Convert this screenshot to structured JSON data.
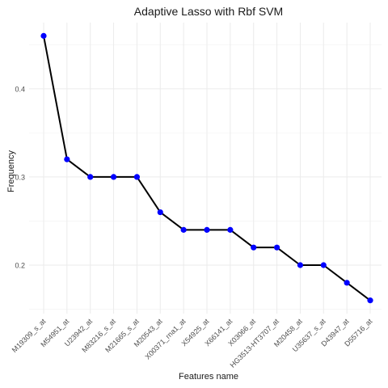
{
  "chart_data": {
    "type": "line",
    "title": "Adaptive Lasso with Rbf SVM",
    "xlabel": "Features name",
    "ylabel": "Frequency",
    "categories": [
      "M19309_s_at",
      "M54951_at",
      "U23942_at",
      "M83216_s_at",
      "M21665_s_at",
      "M20543_at",
      "X00371_rna1_at",
      "X54925_at",
      "X66141_at",
      "X03066_at",
      "HG3513-HT3707_at",
      "M20458_at",
      "U35637_s_at",
      "D43947_at",
      "D55716_at"
    ],
    "values": [
      0.46,
      0.32,
      0.3,
      0.3,
      0.3,
      0.26,
      0.24,
      0.24,
      0.24,
      0.22,
      0.22,
      0.2,
      0.2,
      0.18,
      0.16
    ],
    "yticks": [
      0.2,
      0.3,
      0.4
    ],
    "ylim": [
      0.145,
      0.475
    ],
    "grid": true,
    "line_color": "#000000",
    "point_color": "#0000ff"
  }
}
